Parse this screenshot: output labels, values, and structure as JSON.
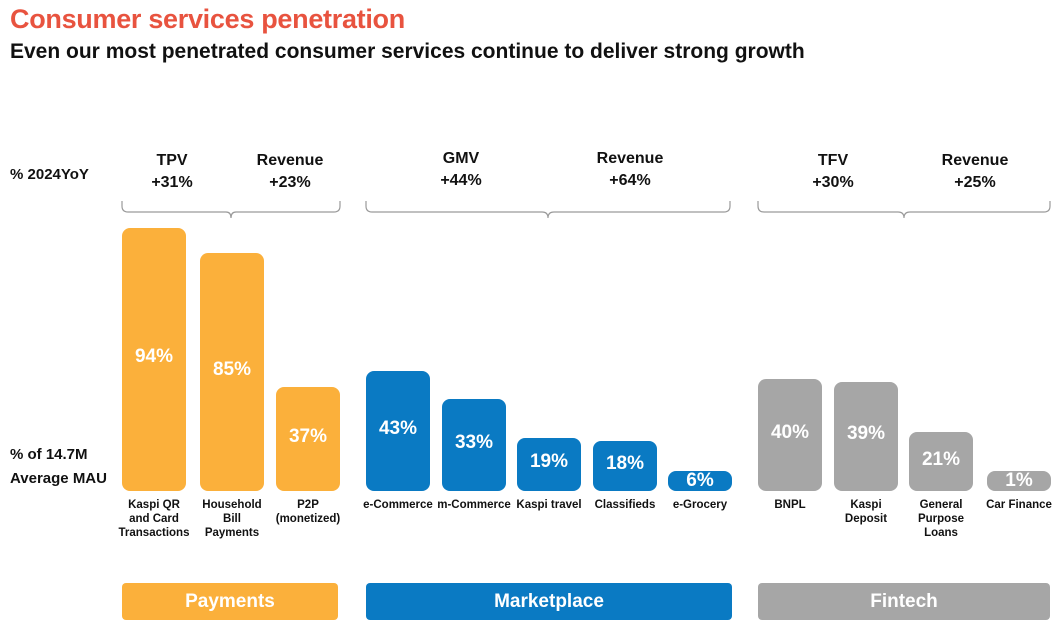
{
  "header": {
    "title": "Consumer services penetration",
    "subtitle": "Even our most penetrated consumer services continue to deliver strong growth"
  },
  "labels": {
    "yoy": "% 2024YoY",
    "mau_line1": "% of 14.7M",
    "mau_line2": "Average MAU"
  },
  "colors": {
    "payments": "#fbb03b",
    "marketplace": "#0a7ac3",
    "fintech": "#a6a6a6",
    "title": "#e8533f"
  },
  "metrics": [
    {
      "name": "TPV",
      "value": "+31%"
    },
    {
      "name": "Revenue",
      "value": "+23%"
    },
    {
      "name": "GMV",
      "value": "+44%"
    },
    {
      "name": "Revenue",
      "value": "+64%"
    },
    {
      "name": "TFV",
      "value": "+30%"
    },
    {
      "name": "Revenue",
      "value": "+25%"
    }
  ],
  "groups": [
    {
      "label": "Payments"
    },
    {
      "label": "Marketplace"
    },
    {
      "label": "Fintech"
    }
  ],
  "chart_data": {
    "type": "bar",
    "ylabel": "% of 14.7M Average MAU",
    "unit": "%",
    "categories": [
      "Kaspi QR and Card Transactions",
      "Household Bill Payments",
      "P2P (monetized)",
      "e-Commerce",
      "m-Commerce",
      "Kaspi travel",
      "Classifieds",
      "e-Grocery",
      "BNPL",
      "Kaspi Deposit",
      "General Purpose Loans",
      "Car Finance"
    ],
    "category_lines": [
      [
        "Kaspi QR",
        "and Card",
        "Transactions"
      ],
      [
        "Household",
        "Bill",
        "Payments"
      ],
      [
        "P2P",
        "(monetized)"
      ],
      [
        "e-Commerce"
      ],
      [
        "m-Commerce"
      ],
      [
        "Kaspi travel"
      ],
      [
        "Classifieds"
      ],
      [
        "e-Grocery"
      ],
      [
        "BNPL"
      ],
      [
        "Kaspi",
        "Deposit"
      ],
      [
        "General",
        "Purpose",
        "Loans"
      ],
      [
        "Car Finance"
      ]
    ],
    "values": [
      94,
      85,
      37,
      43,
      33,
      19,
      18,
      6,
      40,
      39,
      21,
      1
    ],
    "value_labels": [
      "94%",
      "85%",
      "37%",
      "43%",
      "33%",
      "19%",
      "18%",
      "6%",
      "40%",
      "39%",
      "21%",
      "1%"
    ],
    "groups": [
      "Payments",
      "Payments",
      "Payments",
      "Marketplace",
      "Marketplace",
      "Marketplace",
      "Marketplace",
      "Marketplace",
      "Fintech",
      "Fintech",
      "Fintech",
      "Fintech"
    ]
  }
}
